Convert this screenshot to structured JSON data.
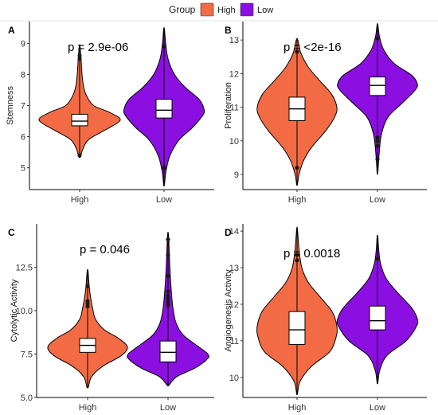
{
  "legend": {
    "title": "Group",
    "items": [
      {
        "label": "High",
        "color": "#F26B45"
      },
      {
        "label": "Low",
        "color": "#8A0FE0"
      }
    ]
  },
  "chart_data": [
    {
      "panel": "A",
      "type": "violin",
      "ylabel": "Stemness",
      "pvalue": "p = 2.9e-06",
      "categories": [
        "High",
        "Low"
      ],
      "yticks": [
        5,
        6,
        7,
        8,
        9
      ],
      "ytick_labels": [
        "5",
        "6",
        "7",
        "8",
        "9"
      ],
      "ylim": [
        4.3,
        9.7
      ],
      "series": [
        {
          "category": "High",
          "min": 5.35,
          "max": 8.9,
          "q1": 6.35,
          "median": 6.5,
          "q3": 6.72,
          "whisker_low": 5.55,
          "whisker_high": 7.6,
          "profile": [
            [
              5.35,
              0.02
            ],
            [
              5.6,
              0.08
            ],
            [
              5.9,
              0.22
            ],
            [
              6.2,
              0.62
            ],
            [
              6.45,
              0.96
            ],
            [
              6.6,
              1.0
            ],
            [
              6.8,
              0.72
            ],
            [
              7.0,
              0.35
            ],
            [
              7.3,
              0.18
            ],
            [
              7.6,
              0.1
            ],
            [
              8.0,
              0.06
            ],
            [
              8.4,
              0.04
            ],
            [
              8.9,
              0.01
            ]
          ],
          "outliers": [
            8.5,
            8.6,
            5.4
          ]
        },
        {
          "category": "Low",
          "min": 4.45,
          "max": 9.45,
          "q1": 6.6,
          "median": 6.85,
          "q3": 7.2,
          "whisker_low": 5.6,
          "whisker_high": 8.1,
          "profile": [
            [
              4.45,
              0.01
            ],
            [
              4.9,
              0.05
            ],
            [
              5.4,
              0.15
            ],
            [
              5.9,
              0.38
            ],
            [
              6.3,
              0.72
            ],
            [
              6.7,
              0.98
            ],
            [
              6.9,
              1.0
            ],
            [
              7.2,
              0.88
            ],
            [
              7.6,
              0.52
            ],
            [
              8.0,
              0.26
            ],
            [
              8.5,
              0.1
            ],
            [
              9.0,
              0.04
            ],
            [
              9.45,
              0.01
            ]
          ],
          "outliers": [
            8.9,
            5.0
          ]
        }
      ]
    },
    {
      "panel": "B",
      "type": "violin",
      "ylabel": "Proliferation",
      "pvalue": "p = <2e-16",
      "categories": [
        "High",
        "Low"
      ],
      "yticks": [
        9,
        10,
        11,
        12,
        13
      ],
      "ytick_labels": [
        "9",
        "10",
        "11",
        "12",
        "13"
      ],
      "ylim": [
        8.55,
        13.55
      ],
      "series": [
        {
          "category": "High",
          "min": 8.7,
          "max": 13.0,
          "q1": 10.6,
          "median": 10.95,
          "q3": 11.3,
          "whisker_low": 9.6,
          "whisker_high": 12.1,
          "profile": [
            [
              8.7,
              0.01
            ],
            [
              9.0,
              0.05
            ],
            [
              9.4,
              0.16
            ],
            [
              9.8,
              0.36
            ],
            [
              10.3,
              0.72
            ],
            [
              10.7,
              0.94
            ],
            [
              11.0,
              1.0
            ],
            [
              11.4,
              0.86
            ],
            [
              11.8,
              0.56
            ],
            [
              12.2,
              0.28
            ],
            [
              12.6,
              0.1
            ],
            [
              13.0,
              0.02
            ]
          ],
          "outliers": [
            12.65,
            9.2
          ]
        },
        {
          "category": "Low",
          "min": 9.05,
          "max": 13.45,
          "q1": 11.35,
          "median": 11.65,
          "q3": 11.9,
          "whisker_low": 10.6,
          "whisker_high": 12.6,
          "profile": [
            [
              9.05,
              0.01
            ],
            [
              9.6,
              0.04
            ],
            [
              10.2,
              0.1
            ],
            [
              10.7,
              0.26
            ],
            [
              11.1,
              0.6
            ],
            [
              11.5,
              0.94
            ],
            [
              11.7,
              1.0
            ],
            [
              11.95,
              0.86
            ],
            [
              12.3,
              0.42
            ],
            [
              12.7,
              0.16
            ],
            [
              13.1,
              0.05
            ],
            [
              13.45,
              0.01
            ]
          ],
          "outliers": [
            10.1,
            10.0,
            9.85,
            9.45,
            13.05
          ]
        }
      ]
    },
    {
      "panel": "C",
      "type": "violin",
      "ylabel": "Cytolytic Activity",
      "pvalue": "p = 0.046",
      "categories": [
        "High",
        "Low"
      ],
      "yticks": [
        5.0,
        7.5,
        10.0,
        12.5
      ],
      "ytick_labels": [
        "5.0",
        "7.5",
        "10.0",
        "12.5"
      ],
      "ylim": [
        5.0,
        15.0
      ],
      "series": [
        {
          "category": "High",
          "min": 5.6,
          "max": 12.3,
          "q1": 7.6,
          "median": 8.0,
          "q3": 8.4,
          "whisker_low": 6.5,
          "whisker_high": 9.7,
          "profile": [
            [
              5.6,
              0.02
            ],
            [
              6.2,
              0.1
            ],
            [
              6.8,
              0.38
            ],
            [
              7.4,
              0.84
            ],
            [
              7.9,
              1.0
            ],
            [
              8.4,
              0.78
            ],
            [
              8.9,
              0.42
            ],
            [
              9.5,
              0.2
            ],
            [
              10.2,
              0.12
            ],
            [
              11.0,
              0.06
            ],
            [
              11.7,
              0.03
            ],
            [
              12.3,
              0.01
            ]
          ],
          "outliers": [
            10.25,
            10.4,
            10.55,
            11.4
          ]
        },
        {
          "category": "Low",
          "min": 5.7,
          "max": 14.4,
          "q1": 7.05,
          "median": 7.6,
          "q3": 8.25,
          "whisker_low": 5.9,
          "whisker_high": 10.0,
          "profile": [
            [
              5.7,
              0.02
            ],
            [
              6.2,
              0.22
            ],
            [
              6.7,
              0.68
            ],
            [
              7.2,
              0.98
            ],
            [
              7.5,
              1.0
            ],
            [
              8.0,
              0.72
            ],
            [
              8.6,
              0.38
            ],
            [
              9.3,
              0.2
            ],
            [
              10.2,
              0.12
            ],
            [
              11.2,
              0.08
            ],
            [
              12.3,
              0.05
            ],
            [
              13.4,
              0.03
            ],
            [
              14.4,
              0.01
            ]
          ],
          "outliers": [
            10.3,
            10.5,
            10.7,
            10.85,
            11.1,
            12.0,
            13.2,
            14.1
          ]
        }
      ]
    },
    {
      "panel": "D",
      "type": "violin",
      "ylabel": "Angiogenesis Activity",
      "pvalue": "p = 0.0018",
      "categories": [
        "High",
        "Low"
      ],
      "yticks": [
        10,
        11,
        12,
        13,
        14
      ],
      "ytick_labels": [
        "10",
        "11",
        "12",
        "13",
        "14"
      ],
      "ylim": [
        9.45,
        14.2
      ],
      "series": [
        {
          "category": "High",
          "min": 9.55,
          "max": 14.05,
          "q1": 10.9,
          "median": 11.3,
          "q3": 11.8,
          "whisker_low": 10.0,
          "whisker_high": 12.8,
          "profile": [
            [
              9.55,
              0.01
            ],
            [
              9.9,
              0.08
            ],
            [
              10.3,
              0.36
            ],
            [
              10.7,
              0.82
            ],
            [
              11.1,
              0.98
            ],
            [
              11.4,
              1.0
            ],
            [
              11.8,
              0.88
            ],
            [
              12.2,
              0.58
            ],
            [
              12.6,
              0.28
            ],
            [
              13.0,
              0.12
            ],
            [
              13.5,
              0.05
            ],
            [
              14.05,
              0.01
            ]
          ],
          "outliers": [
            13.2,
            13.35
          ]
        },
        {
          "category": "Low",
          "min": 9.85,
          "max": 13.85,
          "q1": 11.3,
          "median": 11.55,
          "q3": 11.95,
          "whisker_low": 10.6,
          "whisker_high": 12.7,
          "profile": [
            [
              9.85,
              0.01
            ],
            [
              10.2,
              0.06
            ],
            [
              10.6,
              0.24
            ],
            [
              11.0,
              0.72
            ],
            [
              11.4,
              0.98
            ],
            [
              11.6,
              1.0
            ],
            [
              11.9,
              0.86
            ],
            [
              12.3,
              0.52
            ],
            [
              12.7,
              0.22
            ],
            [
              13.1,
              0.08
            ],
            [
              13.5,
              0.03
            ],
            [
              13.85,
              0.01
            ]
          ],
          "outliers": [
            13.25
          ]
        }
      ]
    }
  ]
}
